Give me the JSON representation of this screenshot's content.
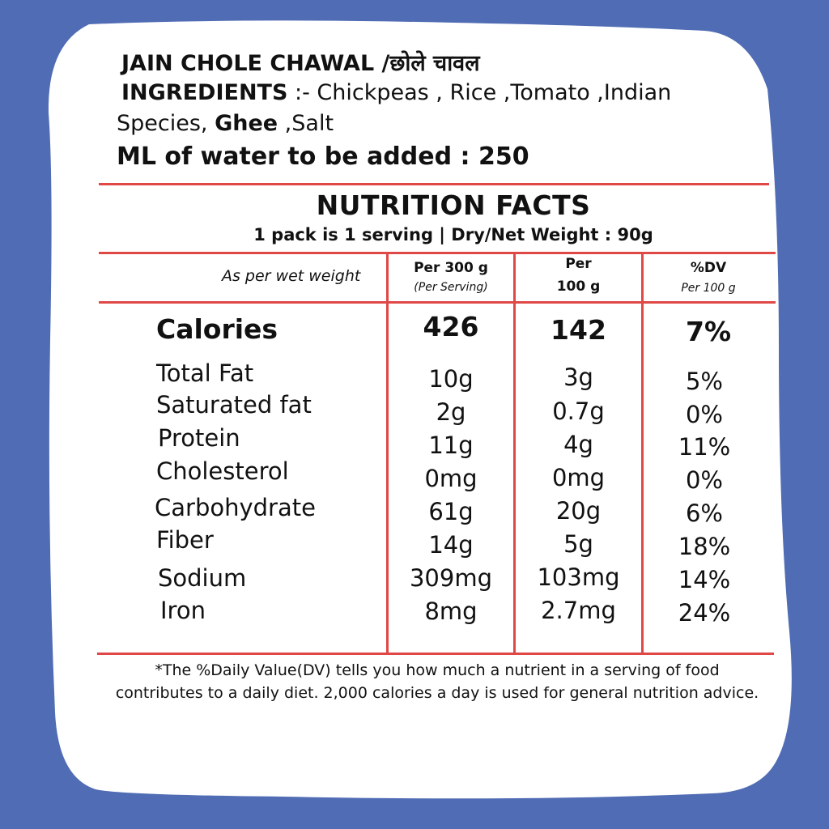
{
  "colors": {
    "background": "#506cb4",
    "card": "#ffffff",
    "rule": "#e04848"
  },
  "product": {
    "title": "JAIN CHOLE CHAWAL /छोले चावल",
    "ingredients_label": "INGREDIENTS",
    "ingredients_pre": " :- Chickpeas , Rice ,Tomato ,Indian",
    "ingredients_line2_pre": "Species, ",
    "ingredients_ghee": "Ghee",
    "ingredients_post": " ,Salt",
    "water_text": "ML of water to be added : 250"
  },
  "nutrition": {
    "title": "NUTRITION FACTS",
    "subtitle": "1 pack is 1 serving | Dry/Net  Weight : 90g",
    "basis_label": "As per wet weight",
    "columns": [
      {
        "head": "Per 300 g",
        "head2": "",
        "sub": "(Per Serving)"
      },
      {
        "head": "Per",
        "head2": "100 g",
        "sub": ""
      },
      {
        "head": "%DV",
        "head2": "",
        "sub": "Per 100 g"
      }
    ],
    "calories": {
      "label": "Calories",
      "values": [
        "426",
        "142",
        "7%"
      ]
    },
    "rows": [
      {
        "label": "Total Fat",
        "values": [
          "10g",
          "3g",
          "5%"
        ]
      },
      {
        "label": "Saturated fat",
        "values": [
          "2g",
          "0.7g",
          "0%"
        ]
      },
      {
        "label": "Protein",
        "values": [
          "11g",
          "4g",
          "11%"
        ]
      },
      {
        "label": "Cholesterol",
        "values": [
          "0mg",
          "0mg",
          "0%"
        ]
      },
      {
        "label": "Carbohydrate",
        "values": [
          "61g",
          "20g",
          "6%"
        ]
      },
      {
        "label": "Fiber",
        "values": [
          "14g",
          "5g",
          "18%"
        ]
      },
      {
        "label": "Sodium",
        "values": [
          "309mg",
          "103mg",
          "14%"
        ]
      },
      {
        "label": "Iron",
        "values": [
          "8mg",
          "2.7mg",
          "24%"
        ]
      }
    ],
    "footnote": "*The %Daily Value(DV) tells you how much a nutrient in a serving of food contributes to a daily diet. 2,000 calories a day is used for general nutrition advice."
  }
}
